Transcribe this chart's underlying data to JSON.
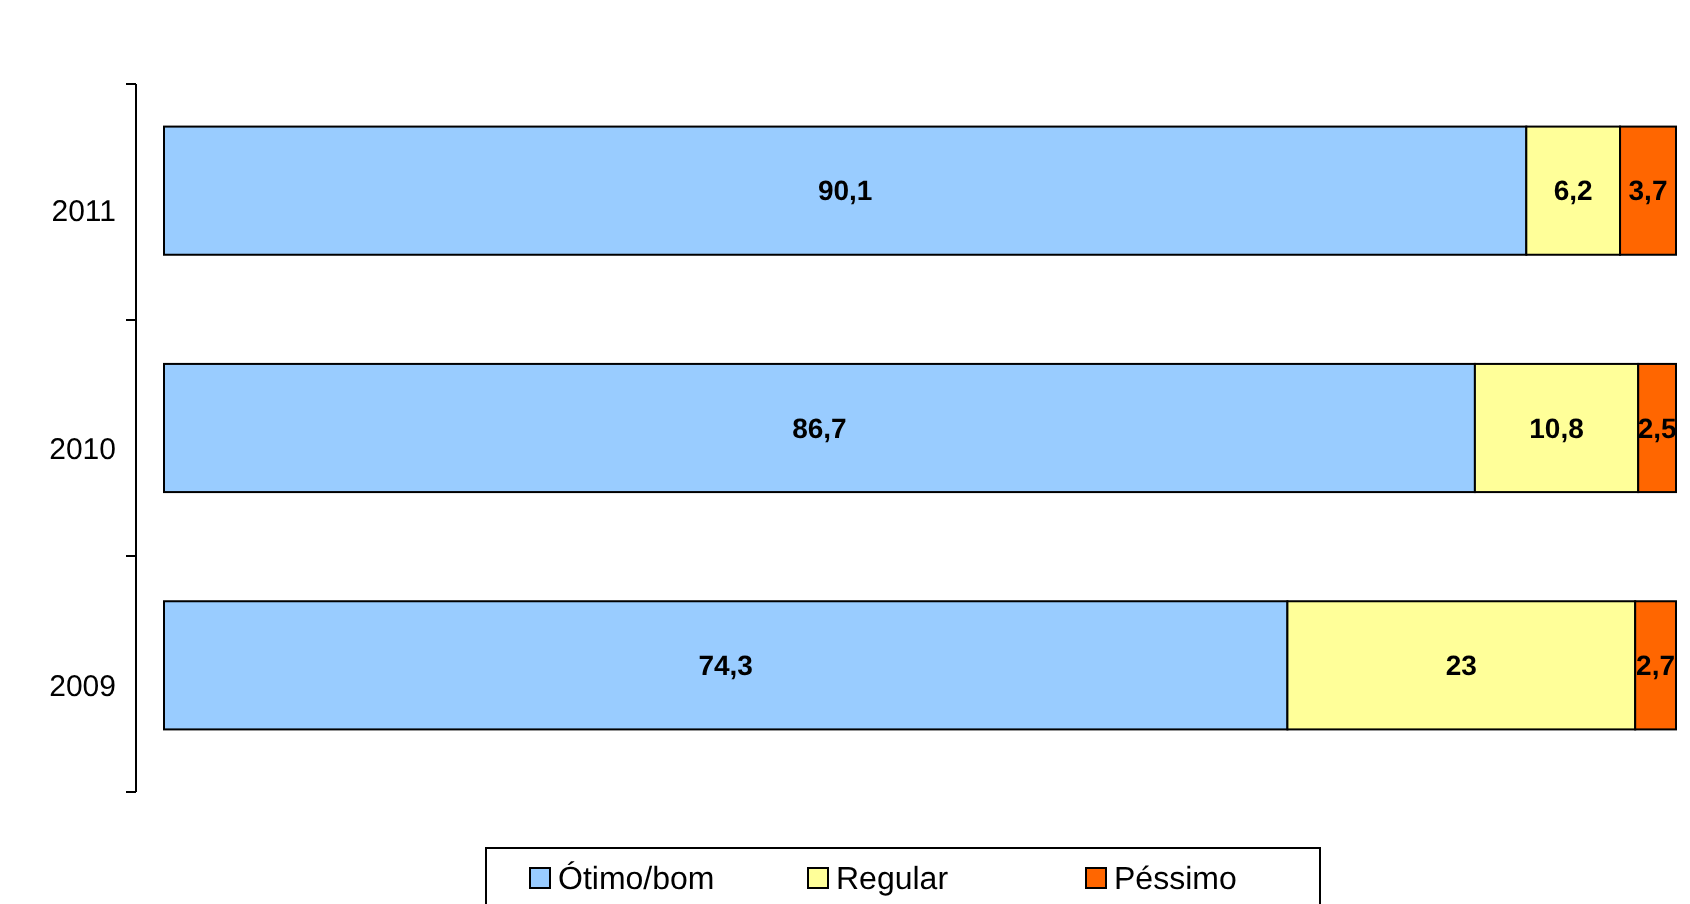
{
  "chart_data": {
    "type": "bar",
    "orientation": "horizontal",
    "stacked": true,
    "categories": [
      "2011",
      "2010",
      "2009"
    ],
    "series": [
      {
        "name": "Ótimo/bom",
        "color": "#99ccff",
        "values": [
          90.1,
          86.7,
          74.3
        ],
        "value_labels": [
          "90,1",
          "86,7",
          "74,3"
        ]
      },
      {
        "name": "Regular",
        "color": "#ffff99",
        "values": [
          6.2,
          10.8,
          23
        ],
        "value_labels": [
          "6,2",
          "10,8",
          "23"
        ]
      },
      {
        "name": "Péssimo",
        "color": "#ff6600",
        "values": [
          3.7,
          2.5,
          2.7
        ],
        "value_labels": [
          "3,7",
          "2,5",
          "2,7"
        ]
      }
    ],
    "xlim": [
      0,
      100
    ],
    "tick_labels": "y",
    "legend": "bottom"
  }
}
